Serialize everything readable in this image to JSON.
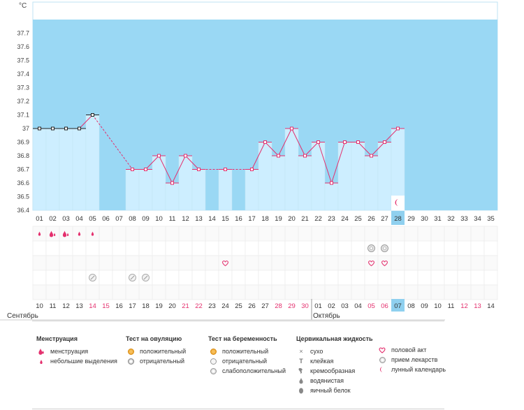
{
  "chart_data": {
    "type": "line",
    "ylabel": "°C",
    "ylim": [
      36.4,
      37.8
    ],
    "yticks": [
      "36.4",
      "36.5",
      "36.6",
      "36.7",
      "36.8",
      "36.9",
      "37",
      "37.1",
      "37.2",
      "37.3",
      "37.4",
      "37.5",
      "37.6",
      "37.7"
    ],
    "cycle_days": [
      "01",
      "02",
      "03",
      "04",
      "05",
      "06",
      "07",
      "08",
      "09",
      "10",
      "11",
      "12",
      "13",
      "14",
      "15",
      "16",
      "17",
      "18",
      "19",
      "20",
      "21",
      "22",
      "23",
      "24",
      "25",
      "26",
      "27",
      "28",
      "29",
      "30",
      "31",
      "32",
      "33",
      "34",
      "35"
    ],
    "series": [
      {
        "name": "basal temperature",
        "values": [
          37.0,
          37.0,
          37.0,
          37.0,
          37.1,
          null,
          null,
          36.7,
          36.7,
          36.8,
          36.6,
          36.8,
          36.7,
          null,
          36.7,
          null,
          36.7,
          36.9,
          36.8,
          37.0,
          36.8,
          36.9,
          36.6,
          36.9,
          36.9,
          36.8,
          36.9,
          37.0,
          null,
          null,
          null,
          null,
          null,
          null,
          null
        ]
      }
    ],
    "current_day": "28",
    "calendar_dates": [
      "10",
      "11",
      "12",
      "13",
      "14",
      "15",
      "16",
      "17",
      "18",
      "19",
      "20",
      "21",
      "22",
      "23",
      "24",
      "25",
      "26",
      "27",
      "28",
      "29",
      "30",
      "01",
      "02",
      "03",
      "04",
      "05",
      "06",
      "07",
      "08",
      "09",
      "10",
      "11",
      "12",
      "13",
      "14"
    ],
    "weekend_dates_index": [
      4,
      5,
      11,
      12,
      18,
      19,
      20,
      25,
      26,
      32,
      33
    ],
    "month_left": "Сентябрь",
    "month_right": "Октябрь",
    "marker_rows": {
      "menstruation": {
        "1": "small",
        "2": "full",
        "3": "full",
        "4": "small",
        "5": "small"
      },
      "ovulation_test": {
        "26": "negative",
        "27": "negative"
      },
      "intercourse": {
        "15": "heart",
        "26": "heart",
        "27": "heart"
      },
      "medication": {
        "5": "pill",
        "8": "pill",
        "9": "pill"
      },
      "lunar": {
        "28": "moon"
      }
    }
  },
  "legend": {
    "menstruation": {
      "title": "Менструация",
      "items": [
        "менструация",
        "небольшие выделения"
      ]
    },
    "ovulation": {
      "title": "Тест на овуляцию",
      "items": [
        "положительный",
        "отрицательный"
      ]
    },
    "pregnancy": {
      "title": "Тест на беременность",
      "items": [
        "положительный",
        "отрицательный",
        "слабоположительный"
      ]
    },
    "cervical": {
      "title": "Цервикальная жидкость",
      "items": [
        "сухо",
        "клейкая",
        "кремообразная",
        "водянистая",
        "яичный белок"
      ]
    },
    "other": {
      "items": [
        "половой акт",
        "прием лекарств",
        "лунный календарь"
      ]
    }
  },
  "colors": {
    "luteal": "#9ad8f4",
    "bar": "#cdeeff",
    "line": "#e4306e",
    "grid": "#e6e6e6",
    "pink": "#e4306e",
    "today": "#8fd0ef"
  }
}
